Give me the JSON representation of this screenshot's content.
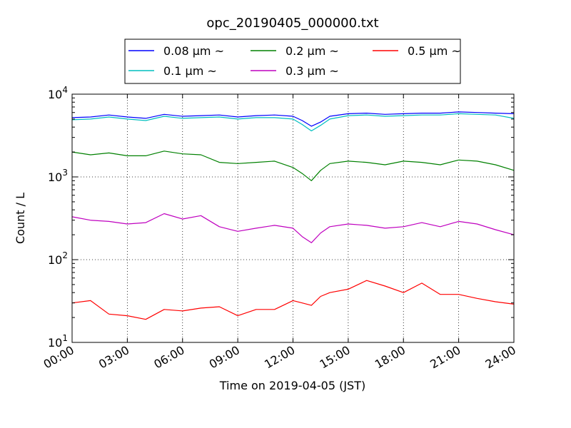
{
  "chart_data": {
    "type": "line",
    "title": "opc_20190405_000000.txt",
    "xlabel": "Time on 2019-04-05 (JST)",
    "ylabel": "Count / L",
    "yscale": "log",
    "ylim": [
      10,
      10000
    ],
    "xlim": [
      "00:00",
      "24:00"
    ],
    "x_ticks": [
      "00:00",
      "03:00",
      "06:00",
      "09:00",
      "12:00",
      "15:00",
      "18:00",
      "21:00",
      "24:00"
    ],
    "y_ticks": [
      {
        "base": "10",
        "exp": "1",
        "value": 10
      },
      {
        "base": "10",
        "exp": "2",
        "value": 100
      },
      {
        "base": "10",
        "exp": "3",
        "value": 1000
      },
      {
        "base": "10",
        "exp": "4",
        "value": 10000
      }
    ],
    "grid": true,
    "legend_position": "top",
    "x": [
      "00:00",
      "01:00",
      "02:00",
      "03:00",
      "04:00",
      "05:00",
      "06:00",
      "07:00",
      "08:00",
      "09:00",
      "10:00",
      "11:00",
      "12:00",
      "12:30",
      "13:00",
      "13:30",
      "14:00",
      "15:00",
      "16:00",
      "17:00",
      "18:00",
      "19:00",
      "20:00",
      "21:00",
      "22:00",
      "23:00",
      "24:00"
    ],
    "series": [
      {
        "name": "0.08 μm ~",
        "color": "#0000ff",
        "values": [
          5200,
          5300,
          5600,
          5300,
          5100,
          5700,
          5400,
          5500,
          5600,
          5300,
          5500,
          5600,
          5400,
          4800,
          4100,
          4600,
          5400,
          5800,
          5900,
          5700,
          5800,
          5900,
          5900,
          6100,
          6000,
          5900,
          5800
        ]
      },
      {
        "name": "0.1 μm ~",
        "color": "#00bfbf",
        "values": [
          4900,
          5000,
          5300,
          5000,
          4800,
          5400,
          5100,
          5200,
          5300,
          5000,
          5200,
          5200,
          5000,
          4300,
          3600,
          4200,
          5000,
          5500,
          5600,
          5400,
          5500,
          5600,
          5600,
          5800,
          5700,
          5600,
          5100
        ]
      },
      {
        "name": "0.2 μm ~",
        "color": "#008000",
        "values": [
          2000,
          1850,
          1950,
          1800,
          1800,
          2050,
          1900,
          1850,
          1500,
          1450,
          1500,
          1550,
          1300,
          1100,
          900,
          1200,
          1450,
          1550,
          1500,
          1400,
          1550,
          1500,
          1400,
          1600,
          1550,
          1400,
          1200
        ]
      },
      {
        "name": "0.3 μm ~",
        "color": "#bf00bf",
        "values": [
          330,
          300,
          290,
          270,
          280,
          360,
          310,
          340,
          250,
          220,
          240,
          260,
          240,
          190,
          160,
          210,
          250,
          270,
          260,
          240,
          250,
          280,
          250,
          290,
          270,
          230,
          200
        ]
      },
      {
        "name": "0.5 μm ~",
        "color": "#ff0000",
        "values": [
          30,
          32,
          22,
          21,
          19,
          25,
          24,
          26,
          27,
          21,
          25,
          25,
          32,
          30,
          28,
          36,
          40,
          44,
          56,
          48,
          40,
          52,
          38,
          38,
          34,
          31,
          29
        ]
      }
    ]
  }
}
